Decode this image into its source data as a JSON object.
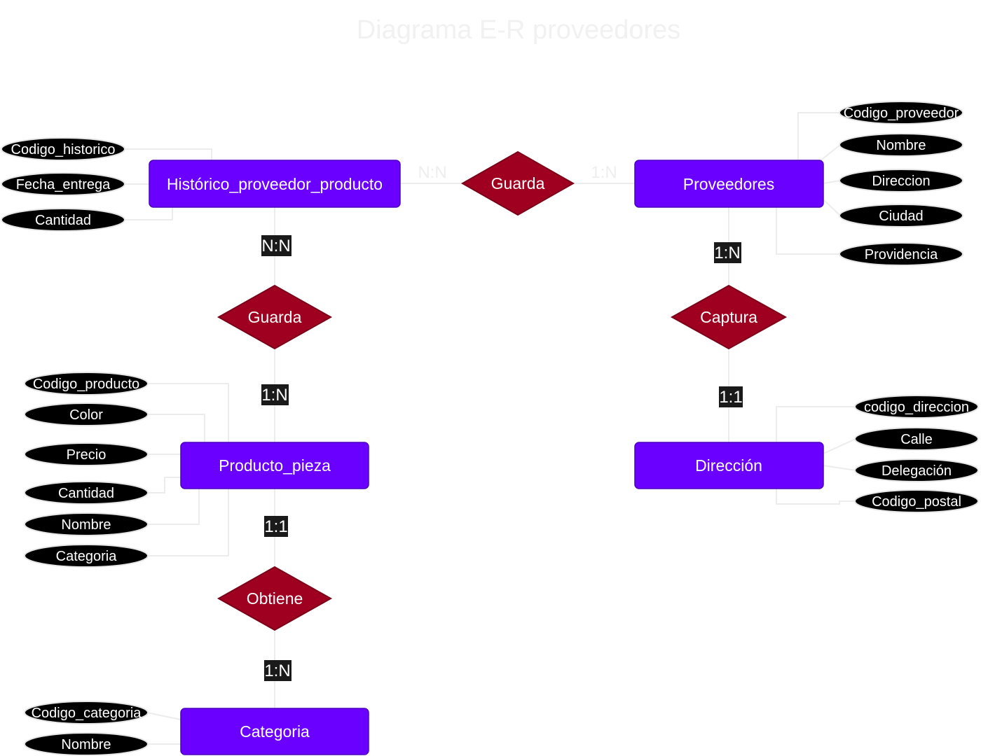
{
  "title": "Diagrama E-R proveedores",
  "entities": {
    "historico": "Histórico_proveedor_producto",
    "proveedores": "Proveedores",
    "producto": "Producto_pieza",
    "direccion": "Dirección",
    "categoria": "Categoria"
  },
  "relationships": {
    "guarda_top": "Guarda",
    "guarda_left": "Guarda",
    "captura": "Captura",
    "obtiene": "Obtiene"
  },
  "cardinalities": {
    "hist_guarda_top": "N:N",
    "prov_guarda_top": "1:N",
    "hist_guarda_left": "N:N",
    "prod_guarda_left": "1:N",
    "prov_captura": "1:N",
    "dir_captura": "1:1",
    "prod_obtiene": "1:1",
    "cat_obtiene": "1:N"
  },
  "attributes": {
    "historico": [
      "Codigo_historico",
      "Fecha_entrega",
      "Cantidad"
    ],
    "proveedores": [
      "Codigo_proveedor",
      "Nombre",
      "Direccion",
      "Ciudad",
      "Providencia"
    ],
    "producto": [
      "Codigo_producto",
      "Color",
      "Precio",
      "Cantidad",
      "Nombre",
      "Categoria"
    ],
    "direccion": [
      "codigo_direccion",
      "Calle",
      "Delegación",
      "Codigo_postal"
    ],
    "categoria": [
      "Codigo_categoria",
      "Nombre"
    ]
  }
}
